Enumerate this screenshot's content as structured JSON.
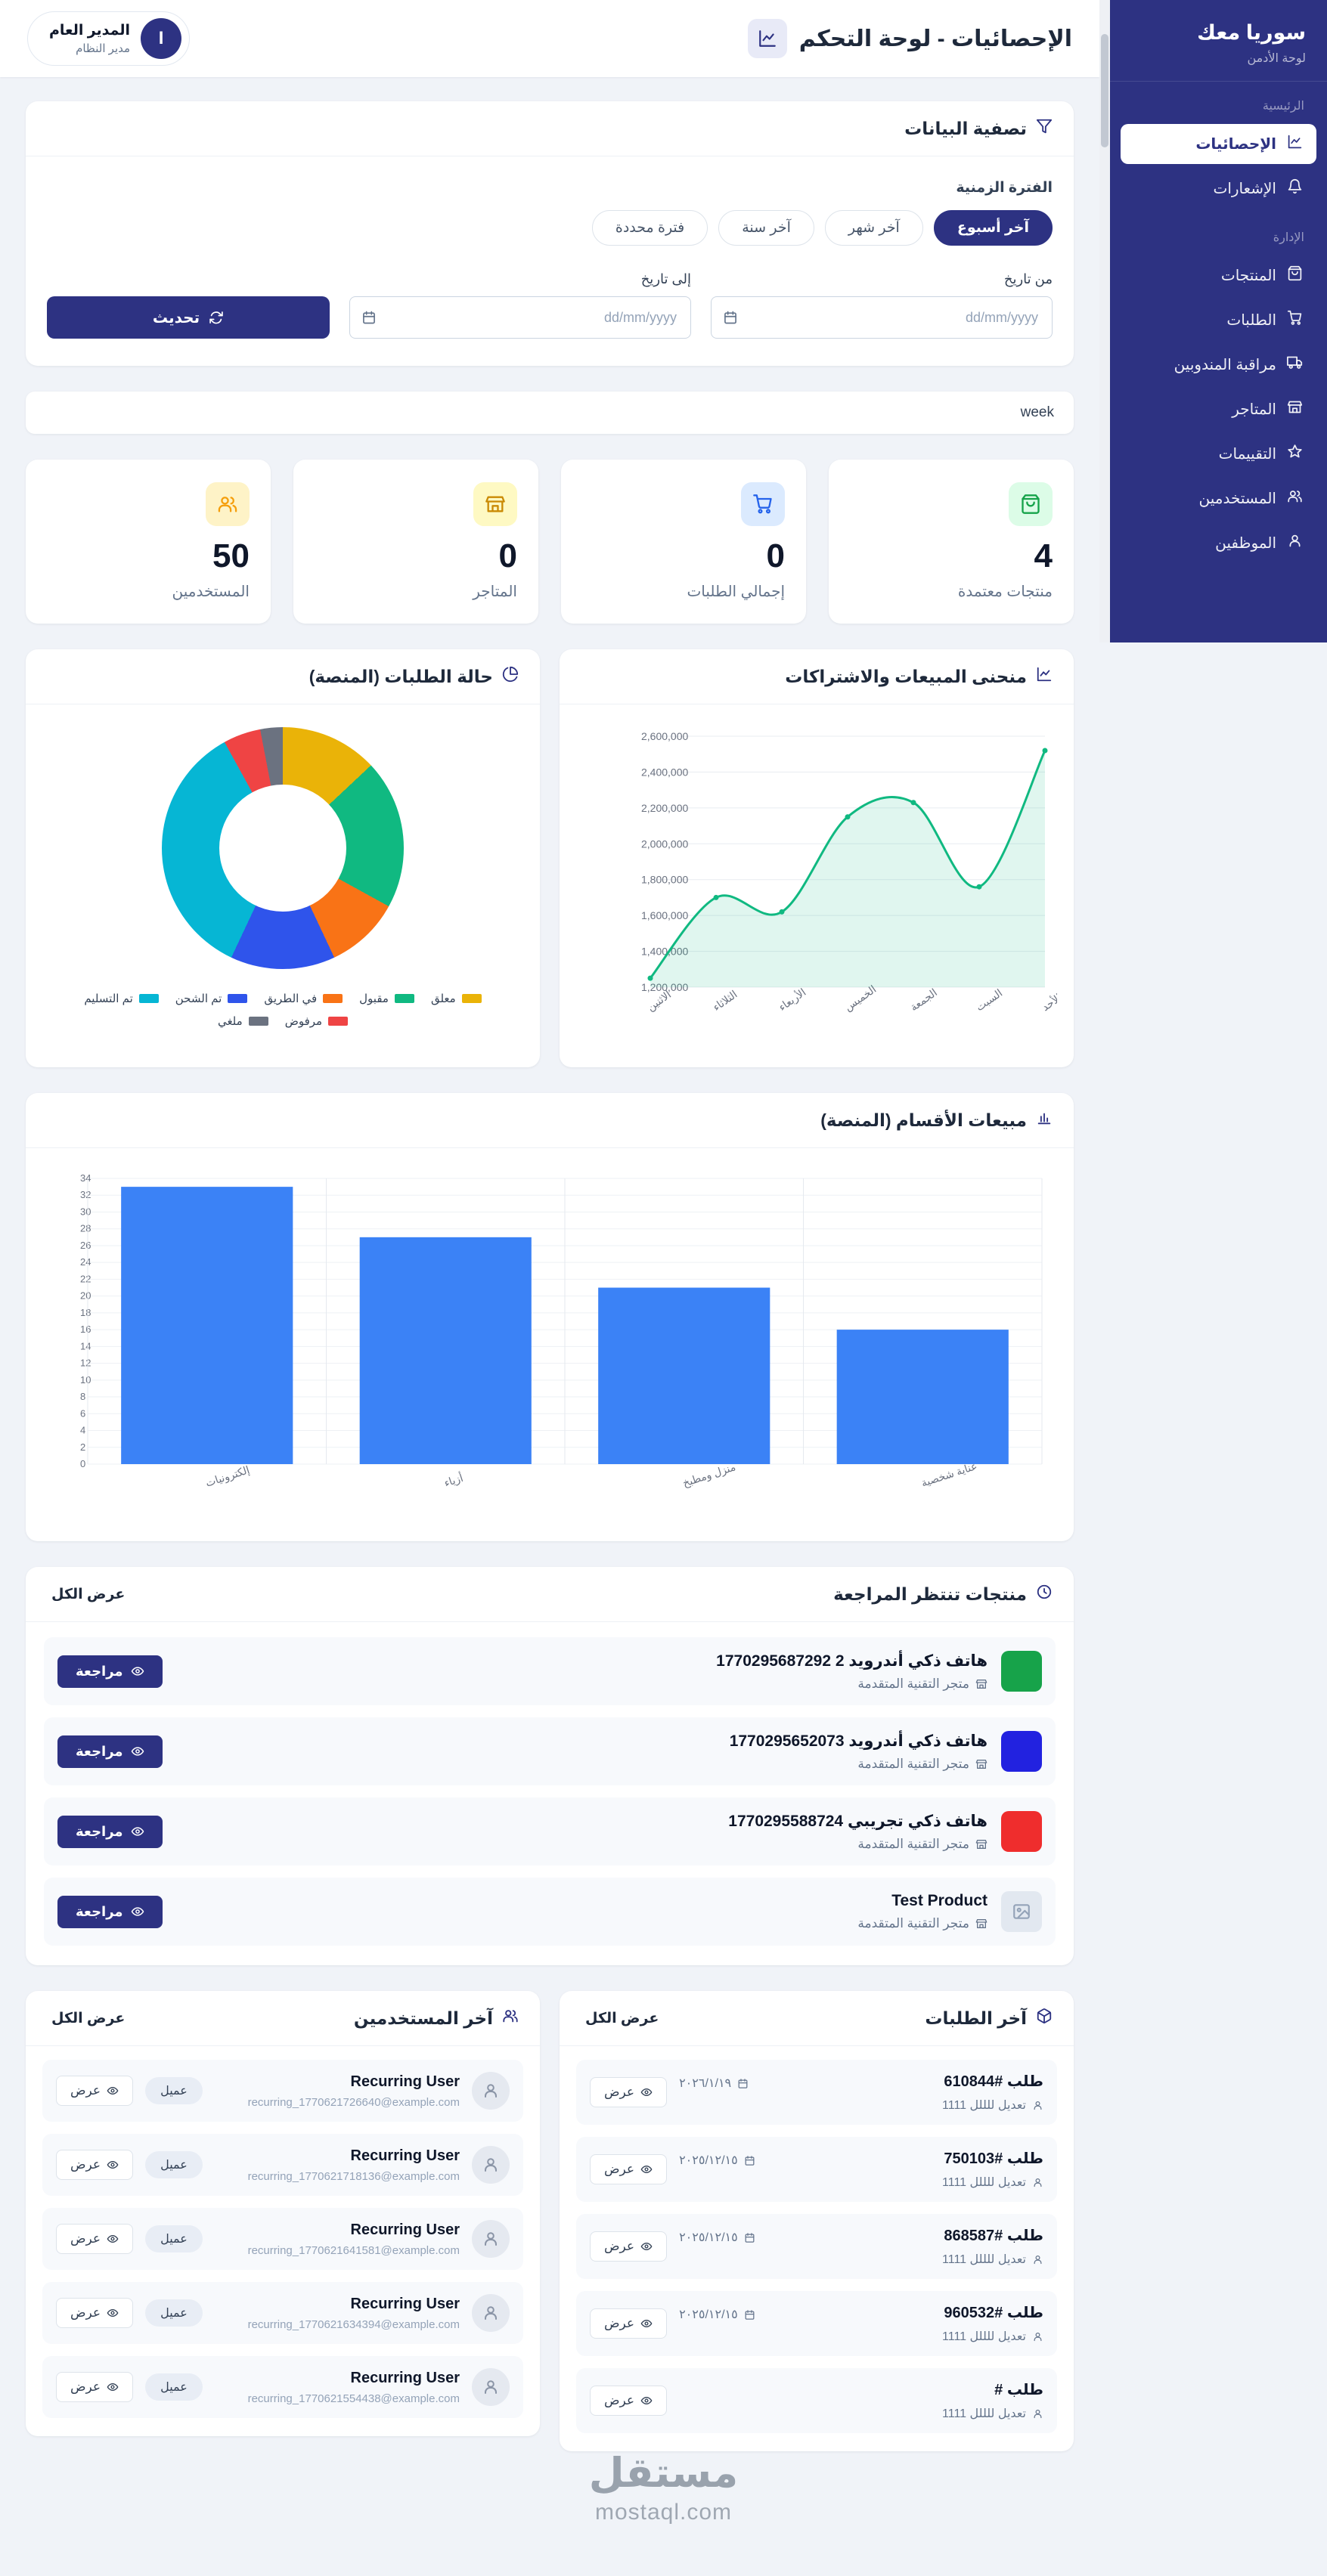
{
  "header": {
    "title": "الإحصائيات - لوحة التحكم",
    "admin_name": "المدير العام",
    "admin_role": "مدير النظام",
    "avatar_text": "I"
  },
  "sidebar": {
    "title": "سوريا معك",
    "subtitle": "لوحة الأدمن",
    "section_main": "الرئيسية",
    "section_admin": "الإدارة",
    "items": [
      {
        "label": "الإحصائيات",
        "icon": "chart-line-icon",
        "active": true
      },
      {
        "label": "الإشعارات",
        "icon": "bell-icon",
        "active": false
      },
      {
        "label": "المنتجات",
        "icon": "shopping-bag-icon",
        "active": false
      },
      {
        "label": "الطلبات",
        "icon": "cart-icon",
        "active": false
      },
      {
        "label": "مراقبة المندوبين",
        "icon": "truck-icon",
        "active": false
      },
      {
        "label": "المتاجر",
        "icon": "store-icon",
        "active": false
      },
      {
        "label": "التقييمات",
        "icon": "star-icon",
        "active": false
      },
      {
        "label": "المستخدمين",
        "icon": "users-icon",
        "active": false
      },
      {
        "label": "الموظفين",
        "icon": "user-icon",
        "active": false
      }
    ]
  },
  "filter": {
    "title": "تصفية البيانات",
    "period_label": "الفترة الزمنية",
    "periods": [
      {
        "label": "آخر أسبوع",
        "active": true
      },
      {
        "label": "آخر شهر",
        "active": false
      },
      {
        "label": "آخر سنة",
        "active": false
      },
      {
        "label": "فترة محددة",
        "active": false
      }
    ],
    "from_label": "من تاريخ",
    "to_label": "إلى تاريخ",
    "date_placeholder": "dd/mm/yyyy",
    "update_label": "تحديث"
  },
  "week_section": {
    "label": "week"
  },
  "stats": [
    {
      "value": "4",
      "label": "منتجات معتمدة",
      "icon": "shopping-bag-icon",
      "style": "background:#dcfce7;color:#16a34a"
    },
    {
      "value": "0",
      "label": "إجمالي الطلبات",
      "icon": "cart-icon",
      "style": "background:#dbeafe;color:#2563eb"
    },
    {
      "value": "0",
      "label": "المتاجر",
      "icon": "store-icon",
      "style": "background:#fef9c3;color:#ca8a04"
    },
    {
      "value": "50",
      "label": "المستخدمين",
      "icon": "users-icon",
      "style": "background:#fef3c7;color:#f59e0b"
    }
  ],
  "chart_data": [
    {
      "id": "orders-status",
      "type": "pie",
      "title": "حالة الطلبات (المنصة)",
      "labels": [
        "معلق",
        "مقبول",
        "في الطريق",
        "تم الشحن",
        "تم التسليم",
        "مرفوض",
        "ملغي"
      ],
      "values": [
        13,
        20,
        10,
        14,
        35,
        5,
        3
      ],
      "colors": [
        "#eab308",
        "#10b981",
        "#f97316",
        "#2f54eb",
        "#06b6d4",
        "#ef4444",
        "#6b7280"
      ],
      "legend_position": "bottom"
    },
    {
      "id": "sales-curve",
      "type": "line",
      "title": "منحنى المبيعات والاشتراكات",
      "categories": [
        "الاثنين",
        "الثلاثاء",
        "الأربعاء",
        "الخميس",
        "الجمعة",
        "السبت",
        "الأحد"
      ],
      "values": [
        1250000,
        1700000,
        1620000,
        2150000,
        2230000,
        1760000,
        2520000
      ],
      "ylim": [
        1200000,
        2600000
      ],
      "ytick_step": 200000,
      "line_color": "#10b981",
      "fill_color": "rgba(16,185,129,0.13)",
      "grid": true
    },
    {
      "id": "category-sales",
      "type": "bar",
      "title": "مبيعات الأقسام (المنصة)",
      "categories": [
        "إلكترونيات",
        "أزياء",
        "منزل ومطبخ",
        "عناية شخصية"
      ],
      "values": [
        33,
        27,
        21,
        16
      ],
      "ylim": [
        0,
        34
      ],
      "ytick_step": 2,
      "bar_color": "#3b82f6",
      "grid": true
    }
  ],
  "review": {
    "title": "منتجات تنتظر المراجعة",
    "view_all": "عرض الكل",
    "action": "مراجعة",
    "items": [
      {
        "name": "هاتف ذكي أندرويد 2 1770295687292",
        "store": "متجر التقنية المتقدمة",
        "thumb_style": "background:#17a34a"
      },
      {
        "name": "هاتف ذكي أندرويد 1770295652073",
        "store": "متجر التقنية المتقدمة",
        "thumb_style": "background:#2222e0"
      },
      {
        "name": "هاتف ذكي تجريبي 1770295588724",
        "store": "متجر التقنية المتقدمة",
        "thumb_style": "background:#ef2d2d"
      },
      {
        "name": "Test Product",
        "store": "متجر التقنية المتقدمة",
        "thumb_style": "background:#e2e8f0;color:#94a3b8"
      }
    ]
  },
  "orders": {
    "title": "آخر الطلبات",
    "view_all": "عرض الكل",
    "action": "عرض",
    "items": [
      {
        "number": "طلب #610844",
        "date": "٢٠٢٦/١/١٩",
        "customer": "تعديل للللل 1111"
      },
      {
        "number": "طلب #750103",
        "date": "٢٠٢٥/١٢/١٥",
        "customer": "تعديل للللل 1111"
      },
      {
        "number": "طلب #868587",
        "date": "٢٠٢٥/١٢/١٥",
        "customer": "تعديل للللل 1111"
      },
      {
        "number": "طلب #960532",
        "date": "٢٠٢٥/١٢/١٥",
        "customer": "تعديل للللل 1111"
      },
      {
        "number": "طلب #",
        "date": "",
        "customer": "تعديل للللل 1111"
      }
    ]
  },
  "users": {
    "title": "آخر المستخدمين",
    "view_all": "عرض الكل",
    "action": "عرض",
    "badge": "عميل",
    "items": [
      {
        "name": "Recurring User",
        "email": "recurring_1770621726640@example.com"
      },
      {
        "name": "Recurring User",
        "email": "recurring_1770621718136@example.com"
      },
      {
        "name": "Recurring User",
        "email": "recurring_1770621641581@example.com"
      },
      {
        "name": "Recurring User",
        "email": "recurring_1770621634394@example.com"
      },
      {
        "name": "Recurring User",
        "email": "recurring_1770621554438@example.com"
      }
    ]
  },
  "watermark": {
    "line1": "مستقل",
    "line2": "mostaql.com"
  }
}
